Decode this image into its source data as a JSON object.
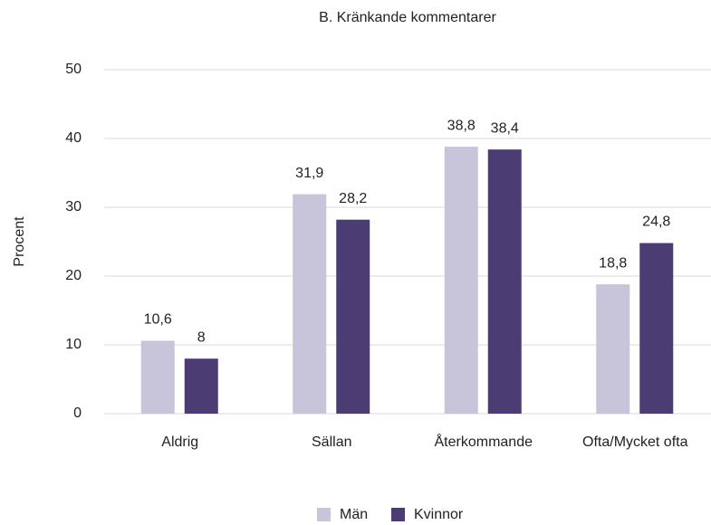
{
  "chart_data": {
    "type": "bar",
    "title": "B. Kränkande kommentarer",
    "y_label": "Procent",
    "categories": [
      "Aldrig",
      "Sällan",
      "Återkommande",
      "Ofta/Mycket ofta"
    ],
    "series": [
      {
        "name": "Män",
        "color": "#c8c4d9",
        "values": [
          10.6,
          31.9,
          38.8,
          18.8
        ],
        "value_labels": [
          "10,6",
          "31,9",
          "38,8",
          "18,8"
        ]
      },
      {
        "name": "Kvinnor",
        "color": "#4b3c74",
        "values": [
          8,
          28.2,
          38.4,
          24.8
        ],
        "value_labels": [
          "8",
          "28,2",
          "38,4",
          "24,8"
        ]
      }
    ],
    "ylim": [
      0,
      50
    ],
    "yticks": [
      0,
      10,
      20,
      30,
      40,
      50
    ],
    "grid": true,
    "legend": "bottom"
  }
}
